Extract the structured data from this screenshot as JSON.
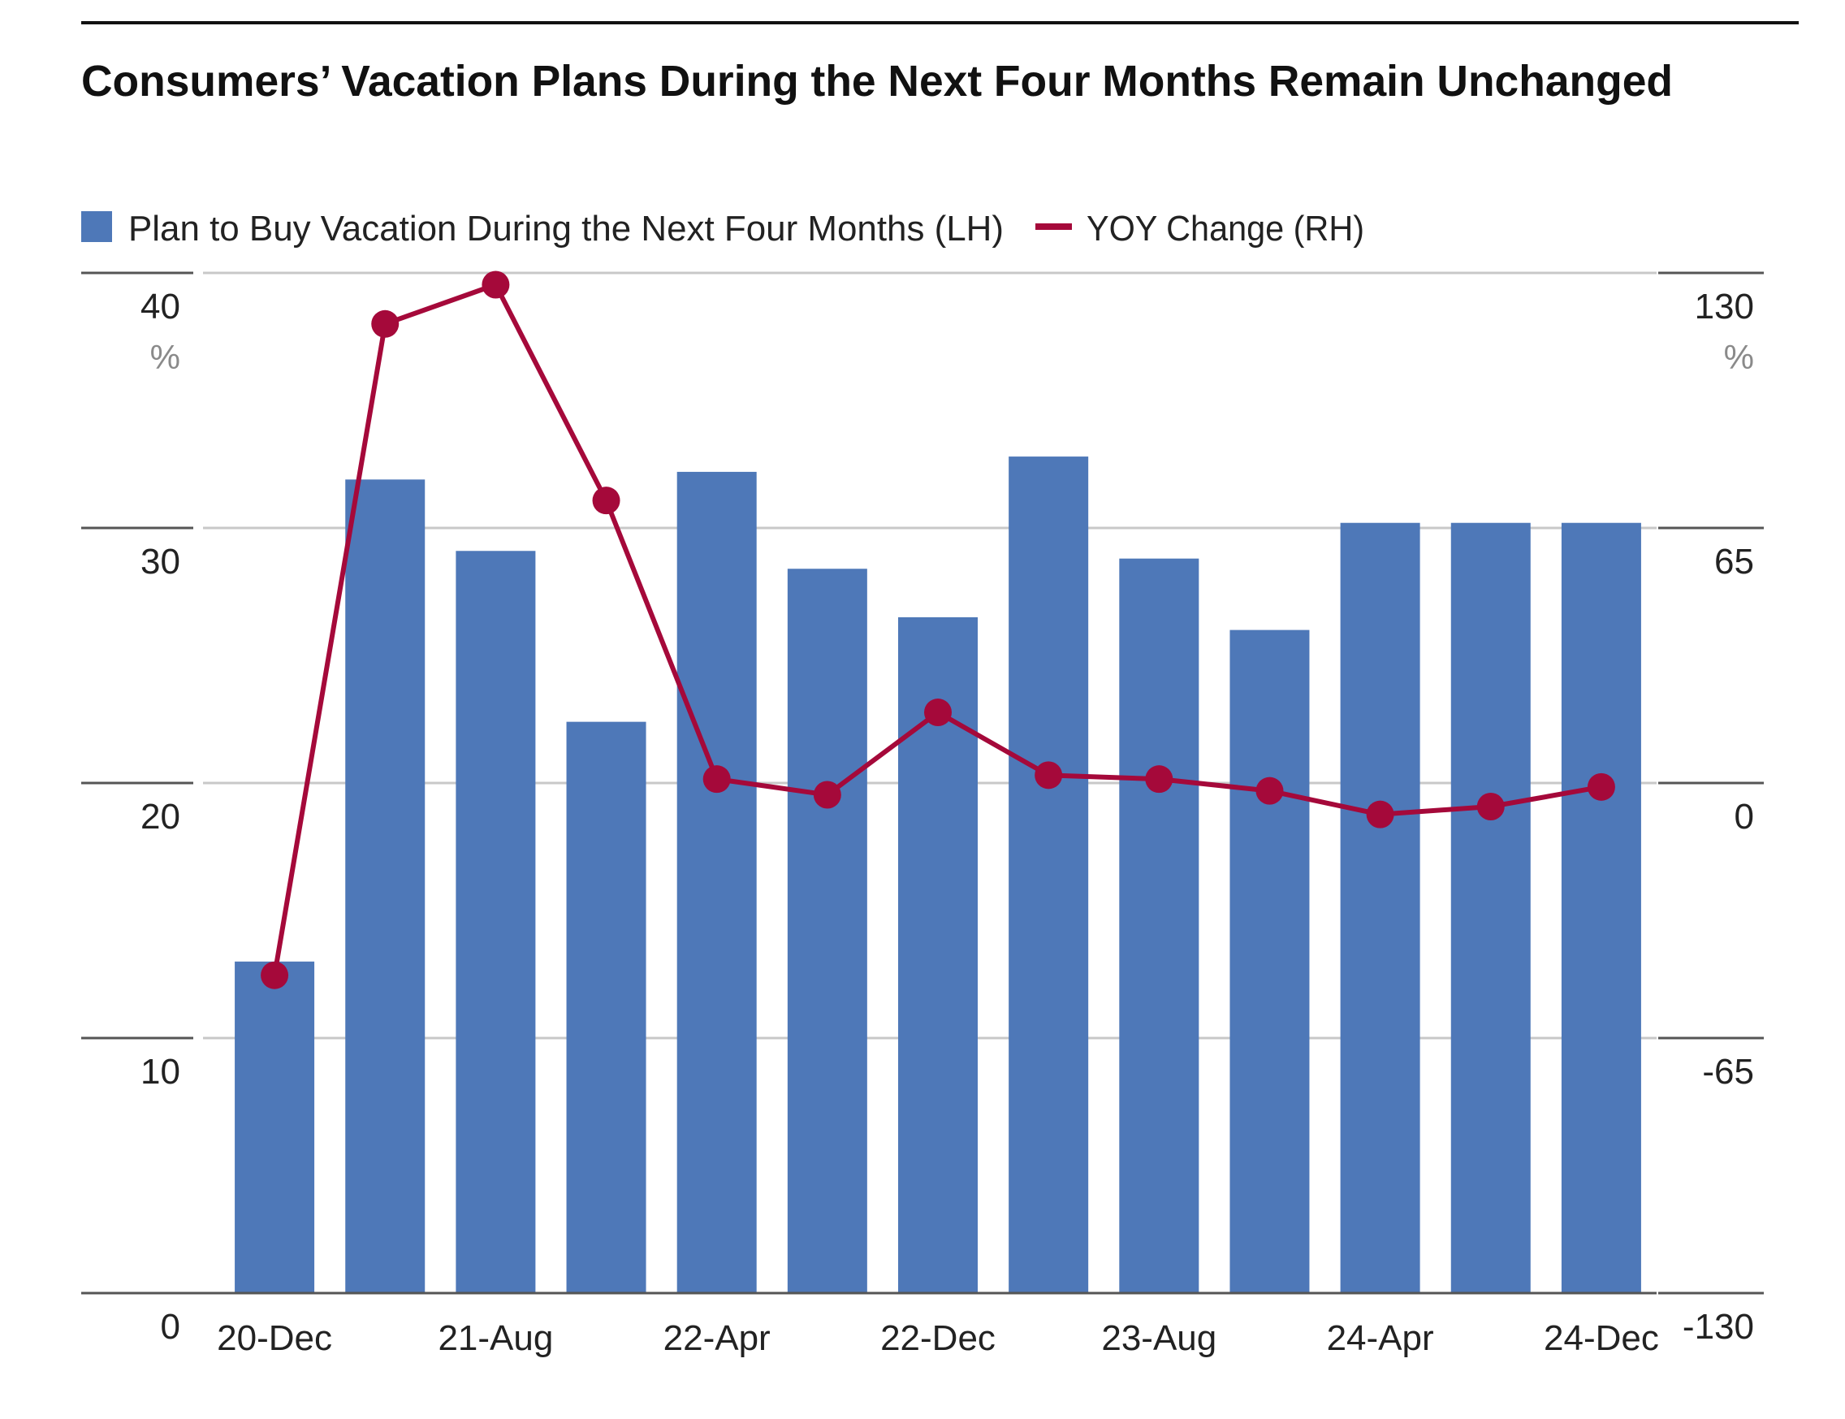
{
  "colors": {
    "bar": "#4e78b8",
    "line": "#a5093a",
    "grid": "#c8c8c8",
    "axis_tick": "#555555",
    "text": "#222222",
    "unit_text": "#8a8a8a",
    "title_rule": "#111111"
  },
  "chart_data": {
    "type": "bar",
    "title": "Consumers’ Vacation Plans During the Next Four Months Remain Unchanged",
    "legend_placement": "top-left",
    "grid": true,
    "x_tick_labels": [
      "20-Dec",
      "21-Aug",
      "22-Apr",
      "22-Dec",
      "23-Aug",
      "24-Apr",
      "24-Dec"
    ],
    "x_tick_label_positions": [
      0,
      2,
      4,
      6,
      8,
      10,
      12
    ],
    "left_axis": {
      "unit": "%",
      "ylim": [
        0,
        40
      ],
      "ticks": [
        "0",
        "10",
        "20",
        "30",
        "40"
      ],
      "tick_values": [
        0,
        10,
        20,
        30,
        40
      ]
    },
    "right_axis": {
      "unit": "%",
      "ylim": [
        -130,
        130
      ],
      "ticks": [
        "-130",
        "-65",
        "0",
        "65",
        "130"
      ],
      "tick_values": [
        -130,
        -65,
        0,
        65,
        130
      ]
    },
    "series": [
      {
        "name": "Plan to Buy Vacation During the Next Four Months (LH)",
        "type": "bar",
        "axis": "left",
        "values": [
          13.0,
          31.9,
          29.1,
          22.4,
          32.2,
          28.4,
          26.5,
          32.8,
          28.8,
          26.0,
          30.2,
          30.2,
          30.2
        ]
      },
      {
        "name": "YOY Change (RH)",
        "type": "line",
        "axis": "right",
        "values": [
          -49,
          117,
          127,
          72,
          1,
          -3,
          18,
          2,
          1,
          -2,
          -8,
          -6,
          -1
        ]
      }
    ]
  }
}
